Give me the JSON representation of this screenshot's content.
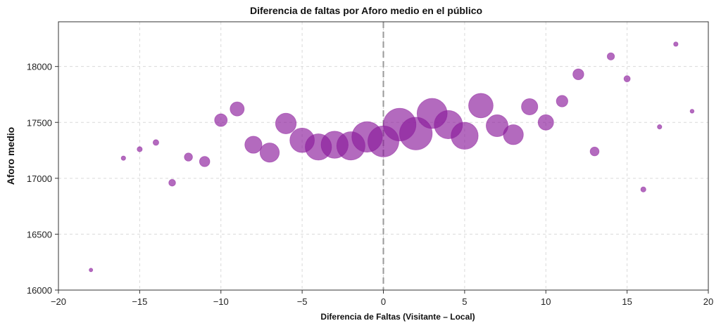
{
  "chart_data": {
    "type": "scatter",
    "title": "Diferencia de faltas por Aforo medio en el público",
    "xlabel": "Diferencia de Faltas (Visitante – Local)",
    "ylabel": "Aforo medio",
    "xlim": [
      -20,
      20
    ],
    "ylim": [
      16000,
      18400
    ],
    "xticks": [
      -20,
      -15,
      -10,
      -5,
      0,
      5,
      10,
      15,
      20
    ],
    "xtick_labels": [
      "−20",
      "−15",
      "−10",
      "−5",
      "0",
      "5",
      "10",
      "15",
      "20"
    ],
    "yticks": [
      16000,
      16500,
      17000,
      17500,
      18000
    ],
    "ytick_labels": [
      "16000",
      "16500",
      "17000",
      "17500",
      "18000"
    ],
    "grid": true,
    "reference_line": {
      "x": 0,
      "style": "dashed"
    },
    "marker_color": "#8b1a9b",
    "points": [
      {
        "x": -18,
        "y": 16180,
        "size": 1
      },
      {
        "x": -16,
        "y": 17180,
        "size": 1.5
      },
      {
        "x": -15,
        "y": 17260,
        "size": 2
      },
      {
        "x": -14,
        "y": 17320,
        "size": 2.5
      },
      {
        "x": -13,
        "y": 16960,
        "size": 3.5
      },
      {
        "x": -12,
        "y": 17190,
        "size": 5
      },
      {
        "x": -11,
        "y": 17150,
        "size": 8
      },
      {
        "x": -10,
        "y": 17520,
        "size": 12
      },
      {
        "x": -9,
        "y": 17620,
        "size": 15
      },
      {
        "x": -8,
        "y": 17300,
        "size": 22
      },
      {
        "x": -7,
        "y": 17230,
        "size": 28
      },
      {
        "x": -6,
        "y": 17490,
        "size": 32
      },
      {
        "x": -5,
        "y": 17340,
        "size": 45
      },
      {
        "x": -4,
        "y": 17280,
        "size": 52
      },
      {
        "x": -3,
        "y": 17300,
        "size": 55
      },
      {
        "x": -2,
        "y": 17290,
        "size": 60
      },
      {
        "x": -1,
        "y": 17370,
        "size": 70
      },
      {
        "x": 0,
        "y": 17330,
        "size": 72
      },
      {
        "x": 1,
        "y": 17480,
        "size": 80
      },
      {
        "x": 2,
        "y": 17400,
        "size": 80
      },
      {
        "x": 3,
        "y": 17580,
        "size": 68
      },
      {
        "x": 4,
        "y": 17480,
        "size": 60
      },
      {
        "x": 5,
        "y": 17380,
        "size": 55
      },
      {
        "x": 6,
        "y": 17650,
        "size": 45
      },
      {
        "x": 7,
        "y": 17470,
        "size": 36
      },
      {
        "x": 8,
        "y": 17390,
        "size": 30
      },
      {
        "x": 9,
        "y": 17640,
        "size": 20
      },
      {
        "x": 10,
        "y": 17500,
        "size": 18
      },
      {
        "x": 11,
        "y": 17690,
        "size": 10
      },
      {
        "x": 12,
        "y": 17930,
        "size": 9
      },
      {
        "x": 13,
        "y": 17240,
        "size": 6
      },
      {
        "x": 14,
        "y": 18090,
        "size": 4
      },
      {
        "x": 15,
        "y": 17890,
        "size": 3
      },
      {
        "x": 16,
        "y": 16900,
        "size": 2
      },
      {
        "x": 17,
        "y": 17460,
        "size": 1.5
      },
      {
        "x": 18,
        "y": 18200,
        "size": 1.5
      },
      {
        "x": 19,
        "y": 17600,
        "size": 1.2
      }
    ]
  }
}
